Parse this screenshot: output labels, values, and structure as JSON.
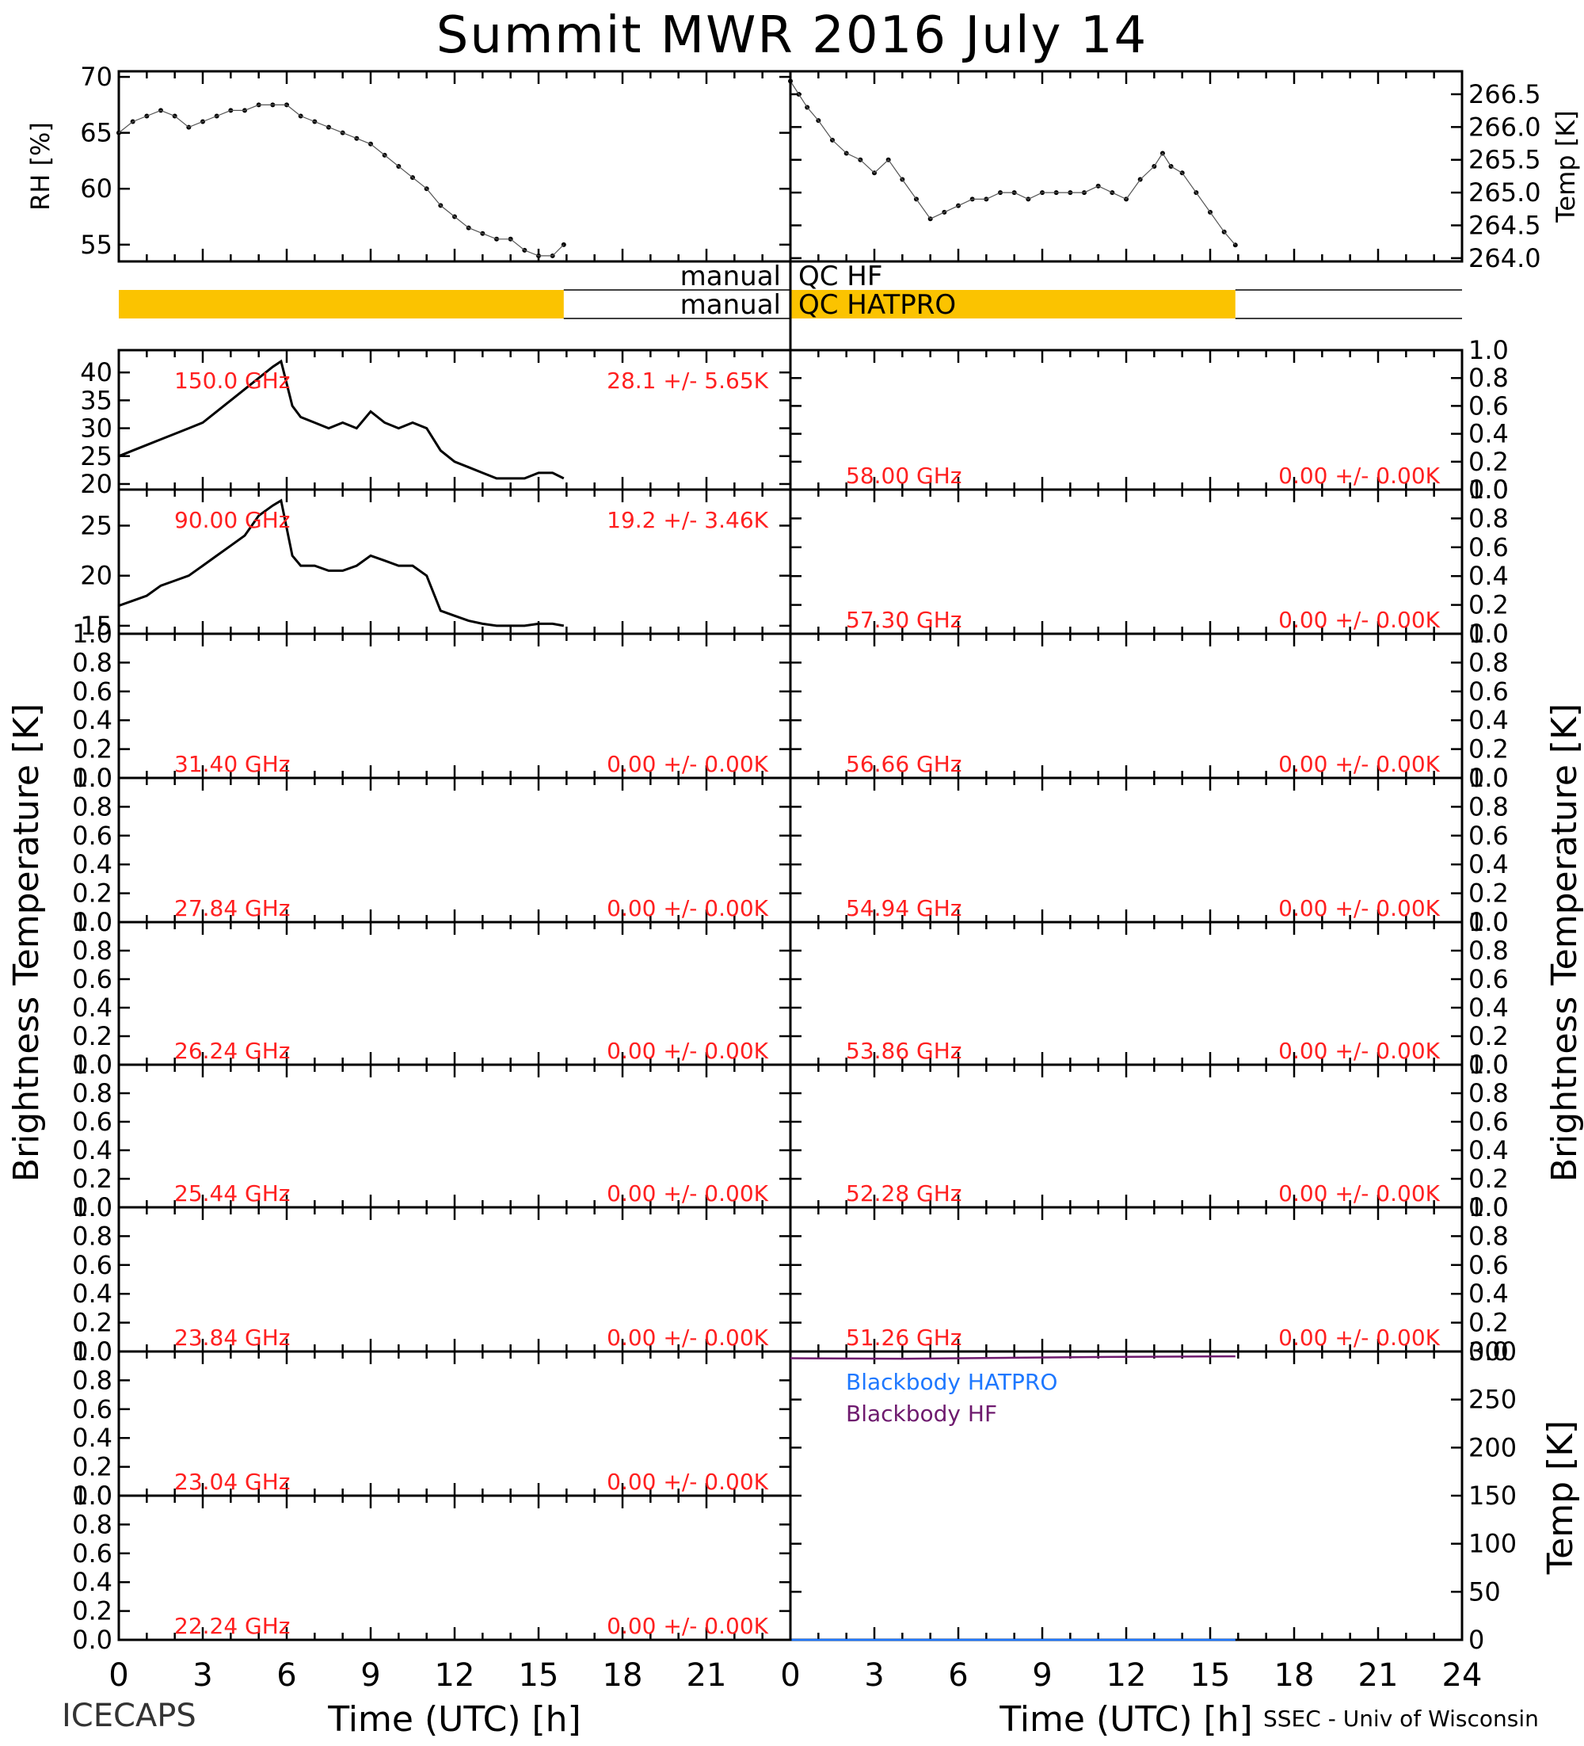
{
  "title": "Summit MWR 2016 July 14",
  "footer": {
    "left": "ICECAPS",
    "right": "SSEC - Univ of Wisconsin"
  },
  "colors": {
    "axis": "#000000",
    "trace": "#000000",
    "freq_label": "#ff2020",
    "qc_bar": "#fbc300",
    "blackbody_hatpro": "#1e78ff",
    "blackbody_hf": "#6e1a6e"
  },
  "qc": {
    "hf": {
      "label_left": "manual",
      "label_right": "QC HF",
      "flag_start_h": null,
      "flag_end_h": null
    },
    "hatpro": {
      "label_left": "manual",
      "label_right": "QC HATPRO",
      "flag_start_h": 0,
      "flag_end_h": 15.9
    }
  },
  "chart_data": [
    {
      "id": "rh",
      "type": "scatter",
      "ylabel": "RH [%]",
      "xlim": [
        0,
        24
      ],
      "ylim": [
        53.5,
        70.5
      ],
      "yticks": [
        55,
        60,
        65,
        70
      ],
      "x": [
        0,
        0.5,
        1,
        1.5,
        2,
        2.5,
        3,
        3.5,
        4,
        4.5,
        5,
        5.5,
        6,
        6.5,
        7,
        7.5,
        8,
        8.5,
        9,
        9.5,
        10,
        10.5,
        11,
        11.5,
        12,
        12.5,
        13,
        13.5,
        14,
        14.5,
        15,
        15.5,
        15.9
      ],
      "y": [
        65,
        66,
        66.5,
        67,
        66.5,
        65.5,
        66,
        66.5,
        67,
        67,
        67.5,
        67.5,
        67.5,
        66.5,
        66,
        65.5,
        65,
        64.5,
        64,
        63,
        62,
        61,
        60,
        58.5,
        57.5,
        56.5,
        56,
        55.5,
        55.5,
        54.5,
        54,
        54,
        55
      ]
    },
    {
      "id": "temp",
      "type": "scatter",
      "ylabel": "Temp [K]",
      "xlim": [
        0,
        24
      ],
      "ylim": [
        263.95,
        266.85
      ],
      "yticks": [
        264.0,
        264.5,
        265.0,
        265.5,
        266.0,
        266.5
      ],
      "ytick_labels": [
        "264.0",
        "264.5",
        "265.0",
        "265.5",
        "266.0",
        "266.5"
      ],
      "x": [
        0,
        0.3,
        0.6,
        1,
        1.5,
        2,
        2.5,
        3,
        3.5,
        4,
        4.5,
        5,
        5.5,
        6,
        6.5,
        7,
        7.5,
        8,
        8.5,
        9,
        9.5,
        10,
        10.5,
        11,
        11.5,
        12,
        12.5,
        13,
        13.3,
        13.6,
        14,
        14.5,
        15,
        15.5,
        15.9
      ],
      "y": [
        266.7,
        266.5,
        266.3,
        266.1,
        265.8,
        265.6,
        265.5,
        265.3,
        265.5,
        265.2,
        264.9,
        264.6,
        264.7,
        264.8,
        264.9,
        264.9,
        265.0,
        265.0,
        264.9,
        265.0,
        265.0,
        265.0,
        265.0,
        265.1,
        265.0,
        264.9,
        265.2,
        265.4,
        265.6,
        265.4,
        265.3,
        265.0,
        264.7,
        264.4,
        264.2
      ]
    },
    {
      "id": "tb-150",
      "type": "line",
      "freq_label": "150.0 GHz",
      "stat_label": "28.1 +/- 5.65K",
      "xlim": [
        0,
        24
      ],
      "ylim": [
        19,
        44
      ],
      "yticks": [
        20,
        25,
        30,
        35,
        40
      ],
      "x": [
        0,
        0.5,
        1,
        1.5,
        2,
        2.5,
        3,
        3.5,
        4,
        4.5,
        5,
        5.5,
        5.8,
        6.2,
        6.5,
        7,
        7.5,
        8,
        8.5,
        9,
        9.5,
        10,
        10.5,
        11,
        11.5,
        12,
        12.5,
        13,
        13.5,
        14,
        14.5,
        15,
        15.5,
        15.9
      ],
      "y": [
        25,
        26,
        27,
        28,
        29,
        30,
        31,
        33,
        35,
        37,
        39,
        41,
        42,
        34,
        32,
        31,
        30,
        31,
        30,
        33,
        31,
        30,
        31,
        30,
        26,
        24,
        23,
        22,
        21,
        21,
        21,
        22,
        22,
        21
      ]
    },
    {
      "id": "tb-90",
      "type": "line",
      "freq_label": "90.00 GHz",
      "stat_label": "19.2 +/- 3.46K",
      "xlim": [
        0,
        24
      ],
      "ylim": [
        14.2,
        28.6
      ],
      "yticks": [
        15,
        20,
        25
      ],
      "x": [
        0,
        0.5,
        1,
        1.5,
        2,
        2.5,
        3,
        3.5,
        4,
        4.5,
        5,
        5.5,
        5.8,
        6.2,
        6.5,
        7,
        7.5,
        8,
        8.5,
        9,
        9.5,
        10,
        10.5,
        11,
        11.5,
        12,
        12.5,
        13,
        13.5,
        14,
        14.5,
        15,
        15.5,
        15.9
      ],
      "y": [
        17,
        17.5,
        18,
        19,
        19.5,
        20,
        21,
        22,
        23,
        24,
        26,
        27,
        27.5,
        22,
        21,
        21,
        20.5,
        20.5,
        21,
        22,
        21.5,
        21,
        21,
        20,
        16.5,
        16,
        15.5,
        15.2,
        15,
        15,
        15,
        15.2,
        15.2,
        15
      ]
    },
    {
      "id": "tb-31.40",
      "type": "line",
      "freq_label": "31.40 GHz",
      "stat_label": "0.00 +/- 0.00K",
      "ylim": [
        0,
        1
      ],
      "yticks": [
        0.0,
        0.2,
        0.4,
        0.6,
        0.8,
        1.0
      ],
      "x": [],
      "y": []
    },
    {
      "id": "tb-27.84",
      "type": "line",
      "freq_label": "27.84 GHz",
      "stat_label": "0.00 +/- 0.00K",
      "ylim": [
        0,
        1
      ],
      "yticks": [
        0.0,
        0.2,
        0.4,
        0.6,
        0.8,
        1.0
      ],
      "x": [],
      "y": []
    },
    {
      "id": "tb-26.24",
      "type": "line",
      "freq_label": "26.24 GHz",
      "stat_label": "0.00 +/- 0.00K",
      "ylim": [
        0,
        1
      ],
      "yticks": [
        0.0,
        0.2,
        0.4,
        0.6,
        0.8,
        1.0
      ],
      "x": [],
      "y": []
    },
    {
      "id": "tb-25.44",
      "type": "line",
      "freq_label": "25.44 GHz",
      "stat_label": "0.00 +/- 0.00K",
      "ylim": [
        0,
        1
      ],
      "yticks": [
        0.0,
        0.2,
        0.4,
        0.6,
        0.8,
        1.0
      ],
      "x": [],
      "y": []
    },
    {
      "id": "tb-23.84",
      "type": "line",
      "freq_label": "23.84 GHz",
      "stat_label": "0.00 +/- 0.00K",
      "ylim": [
        0,
        1
      ],
      "yticks": [
        0.0,
        0.2,
        0.4,
        0.6,
        0.8,
        1.0
      ],
      "x": [],
      "y": []
    },
    {
      "id": "tb-23.04",
      "type": "line",
      "freq_label": "23.04 GHz",
      "stat_label": "0.00 +/- 0.00K",
      "ylim": [
        0,
        1
      ],
      "yticks": [
        0.0,
        0.2,
        0.4,
        0.6,
        0.8,
        1.0
      ],
      "x": [],
      "y": []
    },
    {
      "id": "tb-22.24",
      "type": "line",
      "freq_label": "22.24 GHz",
      "stat_label": "0.00 +/- 0.00K",
      "ylim": [
        0,
        1
      ],
      "yticks": [
        0.0,
        0.2,
        0.4,
        0.6,
        0.8,
        1.0
      ],
      "x": [],
      "y": []
    },
    {
      "id": "tb-58.00",
      "type": "line",
      "freq_label": "58.00 GHz",
      "stat_label": "0.00 +/- 0.00K",
      "ylim": [
        0,
        1
      ],
      "yticks": [
        0.0,
        0.2,
        0.4,
        0.6,
        0.8,
        1.0
      ],
      "x": [],
      "y": []
    },
    {
      "id": "tb-57.30",
      "type": "line",
      "freq_label": "57.30 GHz",
      "stat_label": "0.00 +/- 0.00K",
      "ylim": [
        0,
        1
      ],
      "yticks": [
        0.0,
        0.2,
        0.4,
        0.6,
        0.8,
        1.0
      ],
      "x": [],
      "y": []
    },
    {
      "id": "tb-56.66",
      "type": "line",
      "freq_label": "56.66 GHz",
      "stat_label": "0.00 +/- 0.00K",
      "ylim": [
        0,
        1
      ],
      "yticks": [
        0.0,
        0.2,
        0.4,
        0.6,
        0.8,
        1.0
      ],
      "x": [],
      "y": []
    },
    {
      "id": "tb-54.94",
      "type": "line",
      "freq_label": "54.94 GHz",
      "stat_label": "0.00 +/- 0.00K",
      "ylim": [
        0,
        1
      ],
      "yticks": [
        0.0,
        0.2,
        0.4,
        0.6,
        0.8,
        1.0
      ],
      "x": [],
      "y": []
    },
    {
      "id": "tb-53.86",
      "type": "line",
      "freq_label": "53.86 GHz",
      "stat_label": "0.00 +/- 0.00K",
      "ylim": [
        0,
        1
      ],
      "yticks": [
        0.0,
        0.2,
        0.4,
        0.6,
        0.8,
        1.0
      ],
      "x": [],
      "y": []
    },
    {
      "id": "tb-52.28",
      "type": "line",
      "freq_label": "52.28 GHz",
      "stat_label": "0.00 +/- 0.00K",
      "ylim": [
        0,
        1
      ],
      "yticks": [
        0.0,
        0.2,
        0.4,
        0.6,
        0.8,
        1.0
      ],
      "x": [],
      "y": []
    },
    {
      "id": "tb-51.26",
      "type": "line",
      "freq_label": "51.26 GHz",
      "stat_label": "0.00 +/- 0.00K",
      "ylim": [
        0,
        1
      ],
      "yticks": [
        0.0,
        0.2,
        0.4,
        0.6,
        0.8,
        1.0
      ],
      "x": [],
      "y": []
    },
    {
      "id": "blackbody",
      "type": "line",
      "ylabel": "Temp [K]",
      "xlim": [
        0,
        24
      ],
      "ylim": [
        0,
        300
      ],
      "yticks": [
        0,
        50,
        100,
        150,
        200,
        250,
        300
      ],
      "series": [
        {
          "name": "Blackbody HATPRO",
          "x": [
            0,
            15.9
          ],
          "y": [
            0,
            0
          ]
        },
        {
          "name": "Blackbody HF",
          "x": [
            0,
            4,
            8,
            12,
            15.9
          ],
          "y": [
            293,
            292.5,
            293.5,
            294.5,
            295
          ]
        }
      ]
    }
  ],
  "axes": {
    "brightness_label": "Brightness Temperature [K]",
    "time_label": "Time (UTC) [h]",
    "xticks": [
      0,
      3,
      6,
      9,
      12,
      15,
      18,
      21,
      24
    ],
    "xtick_labels_left": [
      "0",
      "3",
      "6",
      "9",
      "12",
      "15",
      "18",
      "21"
    ],
    "xtick_labels_right": [
      "0",
      "3",
      "6",
      "9",
      "12",
      "15",
      "18",
      "21",
      "24"
    ]
  }
}
